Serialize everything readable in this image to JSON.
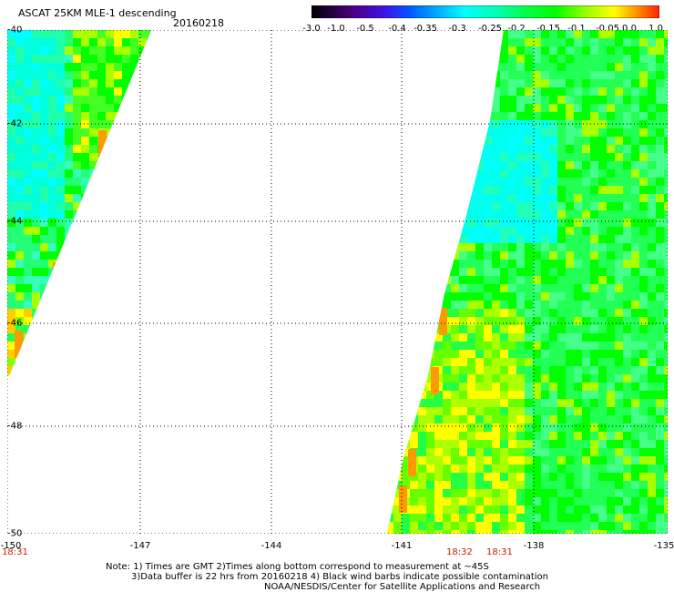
{
  "header": {
    "title": "ASCAT 25KM MLE-1 descending",
    "date": "20160218"
  },
  "colorbar": {
    "labels": [
      "-3.0",
      "-1.0",
      "-0.5",
      "-0.4",
      "-0.35",
      "-0.3",
      "-0.25",
      "-0.2",
      "-0.15",
      "-0.1",
      "-0.05",
      "0.0",
      "1.0"
    ],
    "colors": [
      "#000000",
      "#4b0082",
      "#3a18f0",
      "#0055ff",
      "#00aaff",
      "#00ffff",
      "#00ffaa",
      "#00ff55",
      "#00ff00",
      "#aaff00",
      "#ffff00",
      "#ff9900",
      "#ff2200"
    ]
  },
  "map": {
    "lat_labels": [
      "-40",
      "-42",
      "-44",
      "-46",
      "-48",
      "-50"
    ],
    "lon_labels": [
      "-150",
      "-147",
      "-144",
      "-141",
      "-138",
      "-135"
    ],
    "time_labels": [
      {
        "text": "18:31",
        "lon": "-150"
      },
      {
        "text": "18:32",
        "lon": "-140.5"
      },
      {
        "text": "18:31",
        "lon": "-139.5"
      }
    ]
  },
  "notes": {
    "line1": "Note: 1) Times are GMT 2)Times along bottom correspond to measurement at ~45S",
    "line2": "3)Data buffer is 22 hrs from 20160218 4) Black wind barbs indicate possible contamination",
    "line3": "NOAA/NESDIS/Center for Satellite Applications and Research"
  }
}
